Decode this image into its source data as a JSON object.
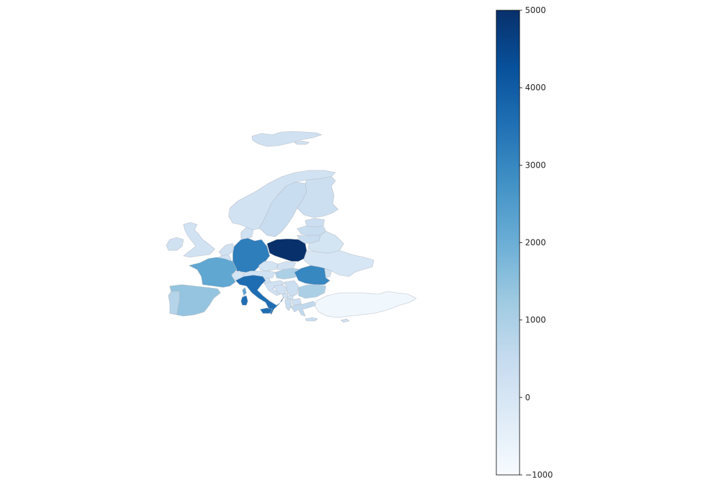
{
  "map": {
    "type": "choropleth",
    "colormap": "Blues",
    "vmin": -1000,
    "vmax": 5000,
    "colorbar": {
      "ticks": [
        5000,
        4000,
        3000,
        2000,
        1000,
        0,
        -1000
      ],
      "tick_labels": [
        "5000",
        "4000",
        "3000",
        "2000",
        "1000",
        "0",
        "−1000"
      ]
    },
    "regions": [
      {
        "id": "iceland",
        "value": 200
      },
      {
        "id": "norway",
        "value": 150
      },
      {
        "id": "sweden",
        "value": 400
      },
      {
        "id": "finland",
        "value": 300
      },
      {
        "id": "estonia",
        "value": 300
      },
      {
        "id": "latvia",
        "value": 400
      },
      {
        "id": "lithuania",
        "value": 400
      },
      {
        "id": "belarus",
        "value": 100
      },
      {
        "id": "ukraine",
        "value": 0
      },
      {
        "id": "moldova",
        "value": 200
      },
      {
        "id": "ireland",
        "value": 200
      },
      {
        "id": "united-kingdom",
        "value": 150
      },
      {
        "id": "denmark",
        "value": 200
      },
      {
        "id": "netherlands",
        "value": 200
      },
      {
        "id": "belgium",
        "value": 200
      },
      {
        "id": "luxembourg",
        "value": 200
      },
      {
        "id": "germany",
        "value": 3200
      },
      {
        "id": "poland",
        "value": 5000
      },
      {
        "id": "czechia",
        "value": 100
      },
      {
        "id": "slovakia",
        "value": 200
      },
      {
        "id": "austria",
        "value": 150
      },
      {
        "id": "switzerland",
        "value": 100
      },
      {
        "id": "hungary",
        "value": 1000
      },
      {
        "id": "romania",
        "value": 3000
      },
      {
        "id": "slovenia",
        "value": 200
      },
      {
        "id": "croatia",
        "value": 200
      },
      {
        "id": "bosnia",
        "value": 200
      },
      {
        "id": "serbia",
        "value": 300
      },
      {
        "id": "montenegro",
        "value": 200
      },
      {
        "id": "kosovo",
        "value": 200
      },
      {
        "id": "albania",
        "value": 400
      },
      {
        "id": "north-macedonia",
        "value": 300
      },
      {
        "id": "bulgaria",
        "value": 1000
      },
      {
        "id": "greece",
        "value": 600
      },
      {
        "id": "france",
        "value": 2200
      },
      {
        "id": "spain",
        "value": 1400
      },
      {
        "id": "portugal",
        "value": 800
      },
      {
        "id": "italy",
        "value": 3600
      },
      {
        "id": "sardinia",
        "value": 3600
      },
      {
        "id": "sicily",
        "value": 3600
      },
      {
        "id": "corsica",
        "value": 2200
      },
      {
        "id": "turkey",
        "value": -800
      },
      {
        "id": "cyprus",
        "value": 200
      },
      {
        "id": "crete",
        "value": 400
      }
    ]
  }
}
